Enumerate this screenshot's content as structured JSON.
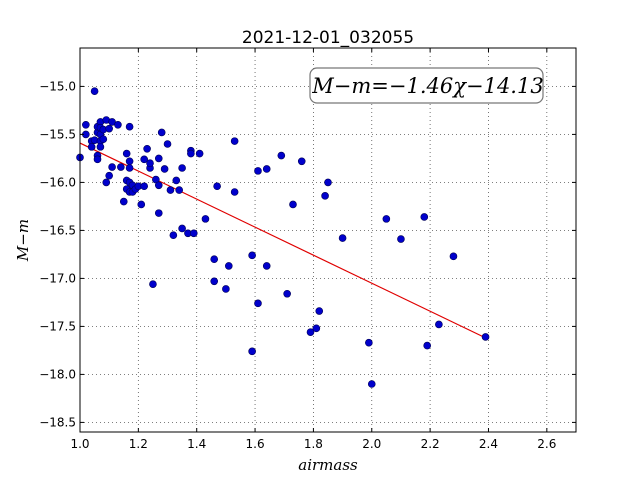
{
  "chart_data": {
    "type": "scatter",
    "title": "2021-12-01_032055",
    "xlabel": "airmass",
    "ylabel": "M−m",
    "xlim": [
      1.0,
      2.7
    ],
    "ylim": [
      -18.6,
      -14.6
    ],
    "xticks": [
      1.0,
      1.2,
      1.4,
      1.6,
      1.8,
      2.0,
      2.2,
      2.4,
      2.6
    ],
    "xtick_labels": [
      "1.0",
      "1.2",
      "1.4",
      "1.6",
      "1.8",
      "2.0",
      "2.2",
      "2.4",
      "2.6"
    ],
    "yticks": [
      -15.0,
      -15.5,
      -16.0,
      -16.5,
      -17.0,
      -17.5,
      -18.0,
      -18.5
    ],
    "ytick_labels": [
      "−15.0",
      "−15.5",
      "−16.0",
      "−16.5",
      "−17.0",
      "−17.5",
      "−18.0",
      "−18.5"
    ],
    "grid": true,
    "annotation": "M−m=−1.46χ−14.13",
    "fit": {
      "slope": -1.46,
      "intercept": -14.13,
      "x_range": [
        1.0,
        2.39
      ],
      "color": "#e00000"
    },
    "marker_color": "#0000cc",
    "series": [
      {
        "points": [
          [
            1.0,
            -15.74
          ],
          [
            1.02,
            -15.4
          ],
          [
            1.02,
            -15.5
          ],
          [
            1.04,
            -15.57
          ],
          [
            1.04,
            -15.63
          ],
          [
            1.05,
            -15.05
          ],
          [
            1.05,
            -15.56
          ],
          [
            1.06,
            -15.48
          ],
          [
            1.06,
            -15.42
          ],
          [
            1.06,
            -15.72
          ],
          [
            1.06,
            -15.76
          ],
          [
            1.07,
            -15.37
          ],
          [
            1.07,
            -15.43
          ],
          [
            1.07,
            -15.5
          ],
          [
            1.07,
            -15.57
          ],
          [
            1.07,
            -15.63
          ],
          [
            1.08,
            -15.45
          ],
          [
            1.08,
            -15.55
          ],
          [
            1.09,
            -16.0
          ],
          [
            1.09,
            -15.35
          ],
          [
            1.1,
            -15.93
          ],
          [
            1.1,
            -15.44
          ],
          [
            1.11,
            -15.37
          ],
          [
            1.11,
            -15.84
          ],
          [
            1.13,
            -15.4
          ],
          [
            1.14,
            -15.84
          ],
          [
            1.15,
            -16.2
          ],
          [
            1.16,
            -15.7
          ],
          [
            1.16,
            -15.98
          ],
          [
            1.16,
            -16.07
          ],
          [
            1.17,
            -15.42
          ],
          [
            1.17,
            -16.0
          ],
          [
            1.17,
            -15.78
          ],
          [
            1.17,
            -15.85
          ],
          [
            1.17,
            -16.1
          ],
          [
            1.18,
            -16.03
          ],
          [
            1.18,
            -16.1
          ],
          [
            1.19,
            -16.07
          ],
          [
            1.2,
            -16.04
          ],
          [
            1.21,
            -16.23
          ],
          [
            1.22,
            -16.04
          ],
          [
            1.22,
            -15.76
          ],
          [
            1.23,
            -15.65
          ],
          [
            1.24,
            -15.85
          ],
          [
            1.24,
            -15.8
          ],
          [
            1.25,
            -17.06
          ],
          [
            1.26,
            -15.97
          ],
          [
            1.27,
            -16.03
          ],
          [
            1.27,
            -15.75
          ],
          [
            1.27,
            -16.32
          ],
          [
            1.28,
            -15.48
          ],
          [
            1.29,
            -15.86
          ],
          [
            1.3,
            -15.6
          ],
          [
            1.31,
            -16.08
          ],
          [
            1.32,
            -16.55
          ],
          [
            1.33,
            -15.98
          ],
          [
            1.34,
            -16.08
          ],
          [
            1.35,
            -16.48
          ],
          [
            1.35,
            -15.85
          ],
          [
            1.37,
            -16.53
          ],
          [
            1.38,
            -15.67
          ],
          [
            1.38,
            -15.7
          ],
          [
            1.39,
            -16.53
          ],
          [
            1.41,
            -15.7
          ],
          [
            1.43,
            -16.38
          ],
          [
            1.46,
            -16.8
          ],
          [
            1.46,
            -17.03
          ],
          [
            1.47,
            -16.04
          ],
          [
            1.5,
            -17.11
          ],
          [
            1.51,
            -16.87
          ],
          [
            1.53,
            -15.57
          ],
          [
            1.53,
            -16.1
          ],
          [
            1.59,
            -16.76
          ],
          [
            1.59,
            -17.76
          ],
          [
            1.61,
            -15.88
          ],
          [
            1.61,
            -17.26
          ],
          [
            1.64,
            -15.86
          ],
          [
            1.64,
            -16.87
          ],
          [
            1.69,
            -15.72
          ],
          [
            1.71,
            -17.16
          ],
          [
            1.73,
            -16.23
          ],
          [
            1.76,
            -15.78
          ],
          [
            1.79,
            -17.56
          ],
          [
            1.81,
            -17.52
          ],
          [
            1.82,
            -17.34
          ],
          [
            1.84,
            -16.14
          ],
          [
            1.85,
            -16.0
          ],
          [
            1.9,
            -16.58
          ],
          [
            1.99,
            -17.67
          ],
          [
            2.0,
            -18.1
          ],
          [
            2.05,
            -16.38
          ],
          [
            2.1,
            -16.59
          ],
          [
            2.18,
            -16.36
          ],
          [
            2.19,
            -17.7
          ],
          [
            2.23,
            -17.48
          ],
          [
            2.28,
            -16.77
          ],
          [
            2.39,
            -17.61
          ]
        ]
      }
    ]
  }
}
